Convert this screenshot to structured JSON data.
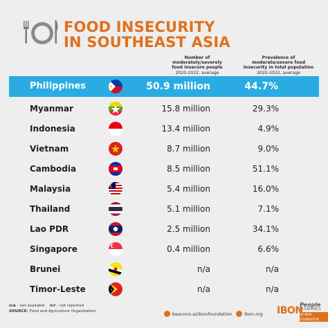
{
  "title_line1": "FOOD INSECURITY",
  "title_line2": "IN SOUTHEAST ASIA",
  "columns": {
    "people": {
      "label_lines": [
        "Number of",
        "moderately/severely",
        "food insecure people"
      ],
      "sub": "2020-2022, average"
    },
    "prevalence": {
      "label_lines": [
        "Prevalence of",
        "moderate/severe food",
        "insecurity in total population"
      ],
      "sub": "2020-2022, average"
    }
  },
  "chart_data": {
    "type": "table",
    "title": "FOOD INSECURITY IN SOUTHEAST ASIA",
    "columns": [
      "Number of moderately/severely food insecure people (2020-2022, average)",
      "Prevalence of moderate/severe food insecurity in total population (2020-2022, average)"
    ],
    "rows": [
      {
        "country": "Philippines",
        "people": "50.9 million",
        "prevalence": "44.7%",
        "highlight": true,
        "flag": "philippines-flag"
      },
      {
        "country": "Myanmar",
        "people": "15.8 million",
        "prevalence": "29.3%",
        "flag": "myanmar-flag"
      },
      {
        "country": "Indonesia",
        "people": "13.4 million",
        "prevalence": "4.9%",
        "flag": "indonesia-flag"
      },
      {
        "country": "Vietnam",
        "people": "8.7 million",
        "prevalence": "9.0%",
        "flag": "vietnam-flag"
      },
      {
        "country": "Cambodia",
        "people": "8.5 million",
        "prevalence": "51.1%",
        "flag": "cambodia-flag"
      },
      {
        "country": "Malaysia",
        "people": "5.4 million",
        "prevalence": "16.0%",
        "flag": "malaysia-flag"
      },
      {
        "country": "Thailand",
        "people": "5.1 million",
        "prevalence": "7.1%",
        "flag": "thailand-flag"
      },
      {
        "country": "Lao PDR",
        "people": "2.5 million",
        "prevalence": "34.1%",
        "flag": "laos-flag"
      },
      {
        "country": "Singapore",
        "people": "0.4 million",
        "prevalence": "6.6%",
        "flag": "singapore-flag"
      },
      {
        "country": "Brunei",
        "people": "n/a",
        "prevalence": "n/a",
        "flag": "brunei-flag"
      },
      {
        "country": "Timor-Leste",
        "people": "n/a",
        "prevalence": "n/a",
        "flag": "timor-leste-flag"
      }
    ]
  },
  "footer": {
    "notes_na": "n/a",
    "notes_na_text": "- not available",
    "notes_nr": "n/r",
    "notes_nr_text": "- not reported",
    "source_label": "SOURCE:",
    "source_text": "Food and Agriculture Organization"
  },
  "links": {
    "link1": "beacons.ai/ibonfoundation",
    "link2": "ibon.org"
  },
  "logos": {
    "ibon": "IBON",
    "pe_top": "People",
    "pe_mid": "ECONOMICS",
    "pe_bot": "BY IBON FOUNDATION"
  },
  "colors": {
    "accent": "#e0701e",
    "highlight": "#2aace2",
    "background": "#eeeeee"
  }
}
